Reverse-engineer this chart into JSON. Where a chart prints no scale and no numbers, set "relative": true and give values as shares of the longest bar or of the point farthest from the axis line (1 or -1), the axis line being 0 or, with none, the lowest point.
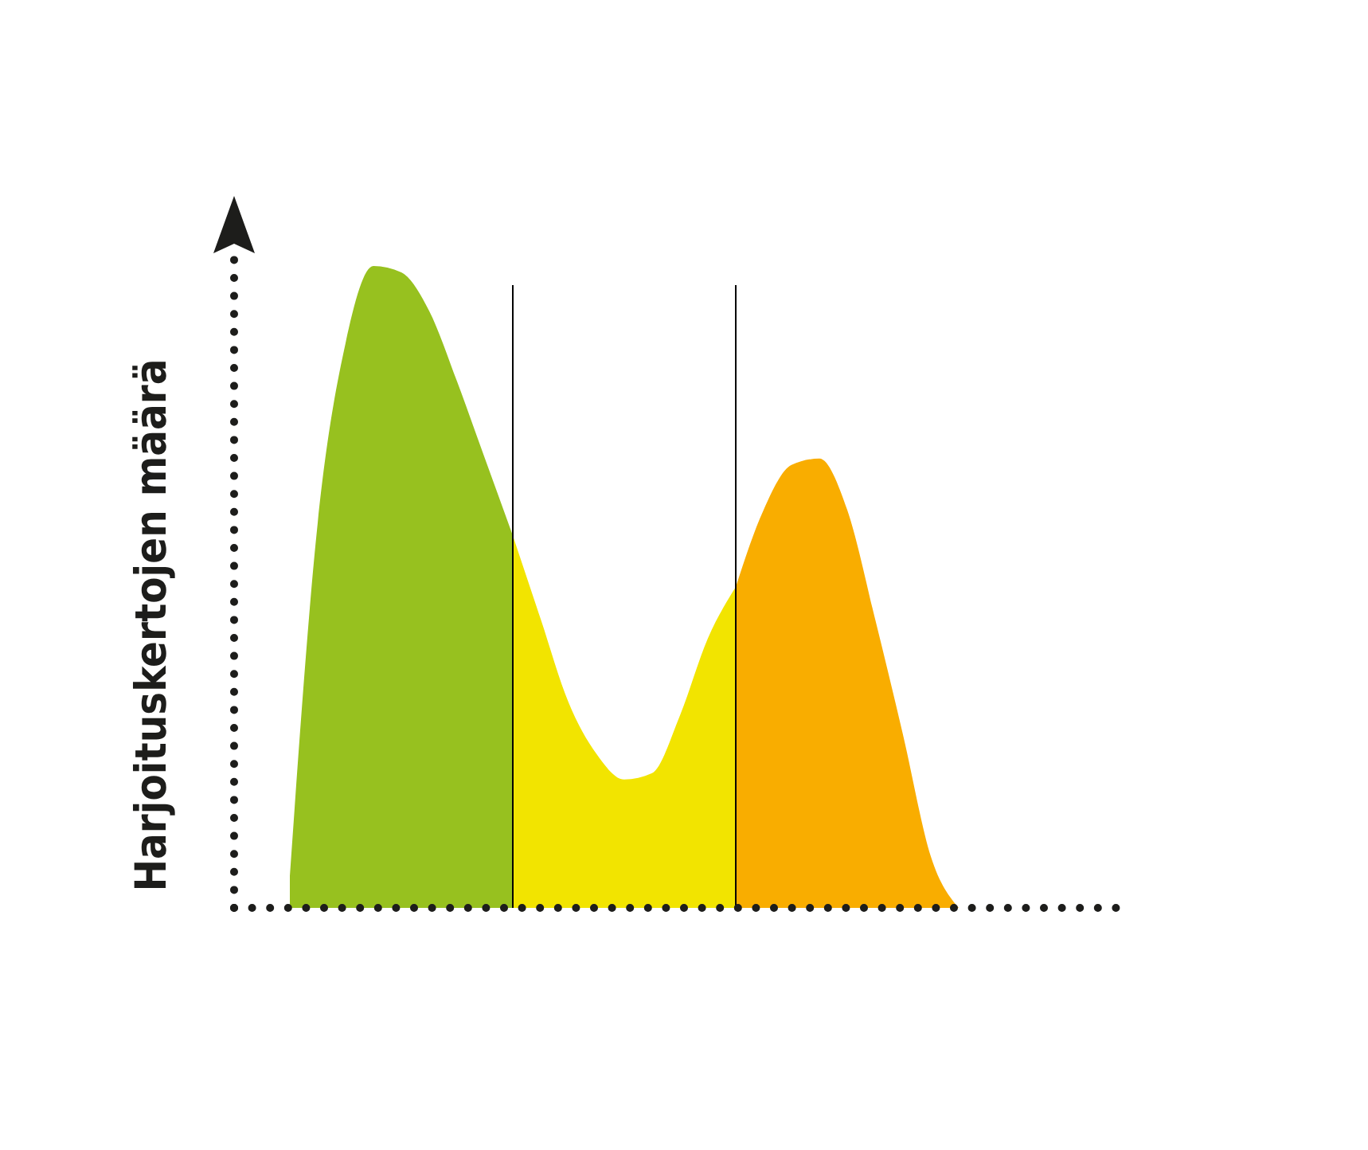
{
  "chart_data": {
    "type": "area",
    "relative": true,
    "ylabel": "Harjoituskertojen määrä",
    "categories": [
      null,
      null,
      null,
      null,
      null,
      null,
      null,
      null,
      null,
      null,
      null,
      null,
      null,
      null,
      null,
      null,
      null,
      null,
      null,
      null,
      null,
      null,
      null,
      null,
      null,
      null,
      null,
      null,
      null,
      null,
      null,
      null,
      null
    ],
    "series": [
      {
        "color": "#97c11f",
        "values": [
          null,
          null,
          0.05,
          0.6,
          0.88,
          1,
          0.99,
          0.93,
          0.82,
          0.7,
          0.58,
          null,
          null,
          null,
          null,
          null,
          null,
          null,
          null,
          null,
          null,
          null,
          null,
          null,
          null,
          null,
          null,
          null,
          null,
          null,
          null,
          null,
          null
        ]
      },
      {
        "color": "#f2e400",
        "values": [
          null,
          null,
          null,
          null,
          null,
          null,
          null,
          null,
          null,
          null,
          0.58,
          0.45,
          0.32,
          0.24,
          0.2,
          0.21,
          0.3,
          0.42,
          0.5,
          null,
          null,
          null,
          null,
          null,
          null,
          null,
          null,
          null,
          null,
          null,
          null,
          null,
          null
        ]
      },
      {
        "color": "#f9ad00",
        "values": [
          null,
          null,
          null,
          null,
          null,
          null,
          null,
          null,
          null,
          null,
          null,
          null,
          null,
          null,
          null,
          null,
          null,
          null,
          0.5,
          0.62,
          0.69,
          0.7,
          0.62,
          0.45,
          0.27,
          0.08,
          0,
          null,
          null,
          null,
          null,
          null,
          null
        ]
      }
    ],
    "grid": false
  }
}
